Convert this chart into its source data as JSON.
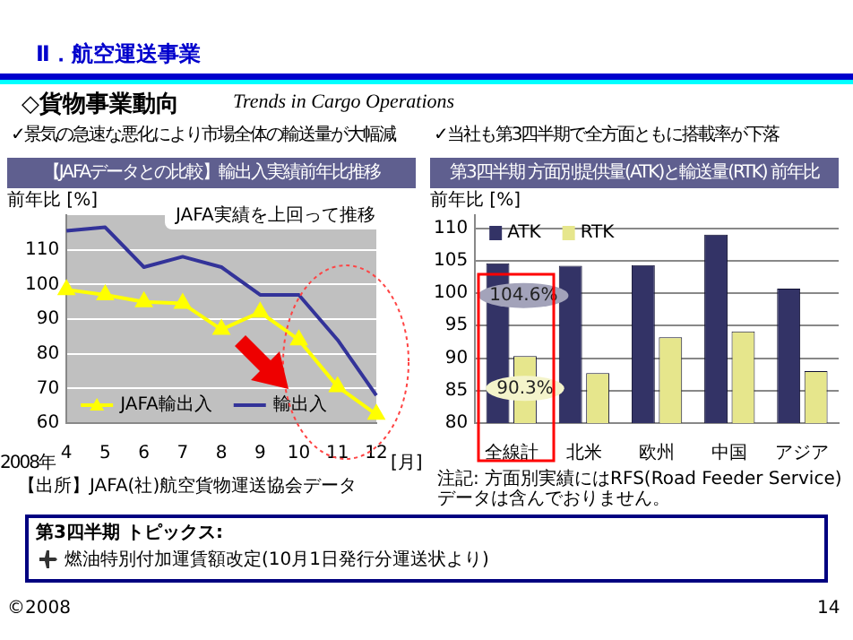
{
  "chart_data": [
    {
      "type": "line",
      "title": "【JAFAデータとの比較】輸出入実績前年比推移",
      "subtitle": "✓景気の急速な悪化により市場全体の輸送量が大幅減",
      "ylabel": "前年比 [%]",
      "categories": [
        "4",
        "5",
        "6",
        "7",
        "8",
        "9",
        "10",
        "11",
        "12"
      ],
      "series": [
        {
          "name": "JAFA輸出入",
          "color": "#ffff00",
          "marker": "triangle",
          "values": [
            98.5,
            97,
            95,
            94.5,
            87,
            92,
            84,
            70.5,
            62.5
          ]
        },
        {
          "name": "輸出入",
          "color": "#333399",
          "values": [
            115.5,
            116.5,
            105,
            108,
            105,
            97,
            97,
            84,
            68
          ]
        }
      ],
      "ylim": [
        60,
        120
      ],
      "yticks": [
        60,
        70,
        80,
        90,
        100,
        110
      ],
      "grid": "y",
      "legend": "bottom left",
      "annotations": [
        "Ⅱ．航空運送事業",
        "◇貨物事業動向",
        "Trends in Cargo Operations",
        "2008年",
        "[月]",
        "JAFA実績を上回って推移",
        "【出所】JAFA(社)航空貨物運送協会データ"
      ]
    },
    {
      "type": "bar",
      "title": "第3四半期 方面別提供量(ATK)と輸送量(RTK) 前年比",
      "subtitle": "✓当社も第3四半期で全方面ともに搭載率が下落",
      "ylabel": "前年比 [%]",
      "categories": [
        "全線計",
        "北米",
        "欧州",
        "中国",
        "アジア"
      ],
      "series": [
        {
          "name": "ATK",
          "color": "#333366",
          "values": [
            104.6,
            104.2,
            104.3,
            109,
            100.7
          ],
          "value_labels": [
            "104.6%",
            null,
            null,
            null,
            null
          ]
        },
        {
          "name": "RTK",
          "color": "#e6e68c",
          "values": [
            90.3,
            87.7,
            93.2,
            94.1,
            88
          ],
          "value_labels": [
            "90.3%",
            null,
            null,
            null,
            null
          ]
        }
      ],
      "ylim": [
        80,
        112
      ],
      "yticks": [
        80,
        85,
        90,
        95,
        100,
        105,
        110
      ],
      "grid": "y",
      "legend": "top left",
      "annotations": [
        "注記: 方面別実績にはRFS(Road Feeder Service)データは含んでおりません。",
        "第3四半期 トピックス:",
        "燃油特別付加運賃額改定(10月1日発行分運送状より)",
        "©2008",
        "14"
      ]
    }
  ]
}
